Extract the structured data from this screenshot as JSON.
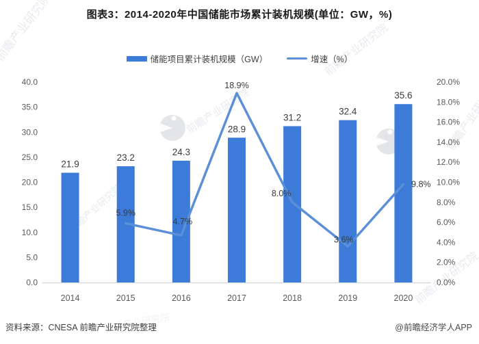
{
  "title": "图表3：2014-2020年中国储能市场累计装机规模(单位：GW，%)",
  "legend": [
    {
      "label": "储能项目累计装机规模（GW）",
      "type": "bar",
      "color": "#3c7bd8"
    },
    {
      "label": "增速（%）",
      "type": "line",
      "color": "#5b8fd8"
    }
  ],
  "chart_data": {
    "type": "bar",
    "subtype": "bar+line combo",
    "title": "图表3：2014-2020年中国储能市场累计装机规模(单位：GW，%)",
    "categories": [
      "2014",
      "2015",
      "2016",
      "2017",
      "2018",
      "2019",
      "2020"
    ],
    "series": [
      {
        "name": "储能项目累计装机规模（GW）",
        "type": "bar",
        "axis": "left",
        "color": "#3c7bd8",
        "values": [
          21.9,
          23.2,
          24.3,
          28.9,
          31.2,
          32.4,
          35.6
        ],
        "labels": [
          "21.9",
          "23.2",
          "24.3",
          "28.9",
          "31.2",
          "32.4",
          "35.6"
        ]
      },
      {
        "name": "增速（%）",
        "type": "line",
        "axis": "right",
        "color": "#5b8fd8",
        "values": [
          null,
          5.9,
          4.7,
          18.9,
          8.0,
          3.6,
          9.8
        ],
        "labels": [
          null,
          "5.9%",
          "4.7%",
          "18.9%",
          "8.0%",
          "3.6%",
          "9.8%"
        ]
      }
    ],
    "left_axis": {
      "min": 0,
      "max": 40,
      "step": 5,
      "ticks": [
        "40.0",
        "35.0",
        "30.0",
        "25.0",
        "20.0",
        "15.0",
        "10.0",
        "5.0",
        "0.0"
      ]
    },
    "right_axis": {
      "min": 0,
      "max": 20,
      "step": 2,
      "ticks": [
        "20.0%",
        "18.0%",
        "16.0%",
        "14.0%",
        "12.0%",
        "10.0%",
        "8.0%",
        "6.0%",
        "4.0%",
        "2.0%",
        "0.0%"
      ]
    },
    "grid": false,
    "legend_position": "top",
    "tick_color": "#595959",
    "label_color": "#3a3a3a",
    "axis_line_color": "#d9d9d9"
  },
  "footer": {
    "source": "资料来源：CNESA 前瞻产业研究院整理",
    "credit": "@前瞻经济学人APP"
  },
  "watermark": {
    "text": "前瞻产业研究院"
  }
}
